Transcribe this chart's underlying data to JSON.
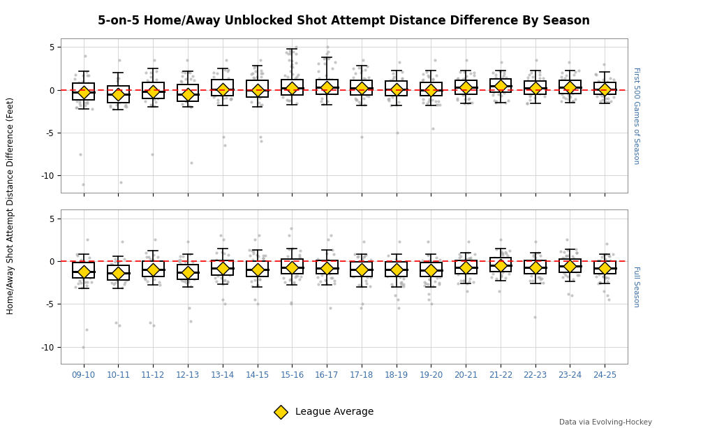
{
  "title": "5-on-5 Home/Away Unblocked Shot Attempt Distance Difference By Season",
  "ylabel": "Home/Away Shot Attempt Distance Difference (Feet)",
  "seasons": [
    "09-10",
    "10-11",
    "11-12",
    "12-13",
    "13-14",
    "14-15",
    "15-16",
    "16-17",
    "17-18",
    "18-19",
    "19-20",
    "20-21",
    "21-22",
    "22-23",
    "23-24",
    "24-25"
  ],
  "panel_labels": [
    "First 500 Games of Season",
    "Full Season"
  ],
  "footnote": "Data via Evolving-Hockey",
  "ylim": [
    -12,
    6
  ],
  "zero_line_color": "#FF0000",
  "box_color": "#000000",
  "scatter_color": "#aaaaaa",
  "diamond_color": "#FFD700",
  "diamond_edge_color": "#000000",
  "panel1": {
    "medians": [
      -0.3,
      -0.5,
      -0.2,
      -0.5,
      0.1,
      0.0,
      0.2,
      0.3,
      0.2,
      0.1,
      0.0,
      0.3,
      0.5,
      0.2,
      0.3,
      0.1
    ],
    "q1": [
      -1.2,
      -1.5,
      -1.0,
      -1.3,
      -0.7,
      -0.8,
      -0.6,
      -0.5,
      -0.6,
      -0.7,
      -0.7,
      -0.5,
      -0.3,
      -0.5,
      -0.4,
      -0.5
    ],
    "q3": [
      0.8,
      0.5,
      0.9,
      0.6,
      1.2,
      1.1,
      1.2,
      1.2,
      1.1,
      1.0,
      0.9,
      1.1,
      1.3,
      1.0,
      1.1,
      0.9
    ],
    "whisker_lo": [
      -2.2,
      -2.3,
      -2.0,
      -2.0,
      -1.8,
      -2.0,
      -1.7,
      -1.7,
      -1.8,
      -1.8,
      -1.8,
      -1.6,
      -1.5,
      -1.6,
      -1.5,
      -1.6
    ],
    "whisker_hi": [
      2.2,
      2.0,
      2.5,
      2.2,
      2.5,
      2.8,
      4.8,
      3.8,
      2.8,
      2.3,
      2.3,
      2.3,
      2.3,
      2.3,
      2.3,
      2.1
    ],
    "diamonds": [
      -0.3,
      -0.5,
      -0.2,
      -0.5,
      0.1,
      0.0,
      0.2,
      0.3,
      0.2,
      0.1,
      0.0,
      0.3,
      0.5,
      0.2,
      0.3,
      0.1
    ],
    "outliers_lo": [
      [
        -7.5,
        -11.0
      ],
      [
        -10.8
      ],
      [
        -7.5
      ],
      [
        -8.5
      ],
      [
        -5.5,
        -6.5
      ],
      [
        -5.5,
        -6.0
      ],
      [],
      [],
      [
        -5.5
      ],
      [
        -5.0
      ],
      [
        -4.5
      ],
      [],
      [],
      [],
      [],
      []
    ],
    "outliers_hi": [
      [
        4.0
      ],
      [
        3.5
      ],
      [
        3.5
      ],
      [
        3.5
      ],
      [
        3.5
      ],
      [
        3.5
      ],
      [
        5.0,
        4.5,
        4.2
      ],
      [
        5.0,
        4.5,
        4.2
      ],
      [
        3.5
      ],
      [
        3.2
      ],
      [
        3.5
      ],
      [
        3.5
      ],
      [
        3.2
      ],
      [
        3.5
      ],
      [
        3.2
      ],
      [
        3.0
      ]
    ],
    "scatter_seeds": [
      1,
      2,
      3,
      4,
      5,
      6,
      7,
      8,
      9,
      10,
      11,
      12,
      13,
      14,
      15,
      16
    ]
  },
  "panel2": {
    "medians": [
      -1.2,
      -1.4,
      -1.0,
      -1.3,
      -0.8,
      -1.0,
      -0.7,
      -0.8,
      -1.0,
      -1.0,
      -1.1,
      -0.7,
      -0.5,
      -0.7,
      -0.6,
      -0.8
    ],
    "q1": [
      -2.0,
      -2.2,
      -1.8,
      -2.1,
      -1.6,
      -1.8,
      -1.5,
      -1.5,
      -1.8,
      -1.8,
      -1.8,
      -1.5,
      -1.2,
      -1.5,
      -1.3,
      -1.5
    ],
    "q3": [
      -0.2,
      -0.5,
      0.0,
      -0.4,
      0.1,
      0.0,
      0.2,
      0.1,
      -0.1,
      -0.1,
      -0.2,
      0.1,
      0.4,
      0.1,
      0.2,
      0.0
    ],
    "whisker_lo": [
      -3.2,
      -3.2,
      -2.8,
      -3.0,
      -2.7,
      -3.0,
      -2.8,
      -2.8,
      -3.0,
      -3.0,
      -3.0,
      -2.6,
      -2.3,
      -2.6,
      -2.4,
      -2.6
    ],
    "whisker_hi": [
      0.8,
      0.6,
      1.2,
      0.8,
      1.5,
      1.3,
      1.5,
      1.3,
      0.8,
      0.8,
      0.8,
      1.0,
      1.5,
      1.0,
      1.4,
      0.8
    ],
    "diamonds": [
      -1.2,
      -1.4,
      -1.0,
      -1.3,
      -0.8,
      -1.0,
      -0.7,
      -0.8,
      -1.0,
      -1.0,
      -1.1,
      -0.7,
      -0.5,
      -0.7,
      -0.6,
      -0.8
    ],
    "outliers_lo": [
      [
        -10.0,
        -8.0
      ],
      [
        -7.5,
        -7.2
      ],
      [
        -7.5,
        -7.2
      ],
      [
        -5.5,
        -7.0
      ],
      [
        -4.5,
        -5.0
      ],
      [
        -4.5,
        -5.0
      ],
      [
        -5.0,
        -4.8
      ],
      [
        -5.5
      ],
      [
        -5.5,
        -5.0
      ],
      [
        -5.5,
        -4.5,
        -4.0
      ],
      [
        -5.0,
        -4.5,
        -3.8
      ],
      [
        -3.5
      ],
      [
        -3.5
      ],
      [
        -6.5
      ],
      [
        -4.0,
        -3.8
      ],
      [
        -4.5,
        -4.0,
        -3.5
      ]
    ],
    "outliers_hi": [
      [
        2.5
      ],
      [
        2.3
      ],
      [
        2.5
      ],
      [
        2.3
      ],
      [
        3.0,
        2.5
      ],
      [
        2.5,
        3.0
      ],
      [
        3.0,
        3.8
      ],
      [
        3.0,
        2.5
      ],
      [
        2.3
      ],
      [
        2.3
      ],
      [
        2.3
      ],
      [
        2.3
      ],
      [
        2.5
      ],
      [
        2.3
      ],
      [
        2.5
      ],
      [
        2.0
      ]
    ],
    "scatter_seeds": [
      101,
      102,
      103,
      104,
      105,
      106,
      107,
      108,
      109,
      110,
      111,
      112,
      113,
      114,
      115,
      116
    ]
  }
}
